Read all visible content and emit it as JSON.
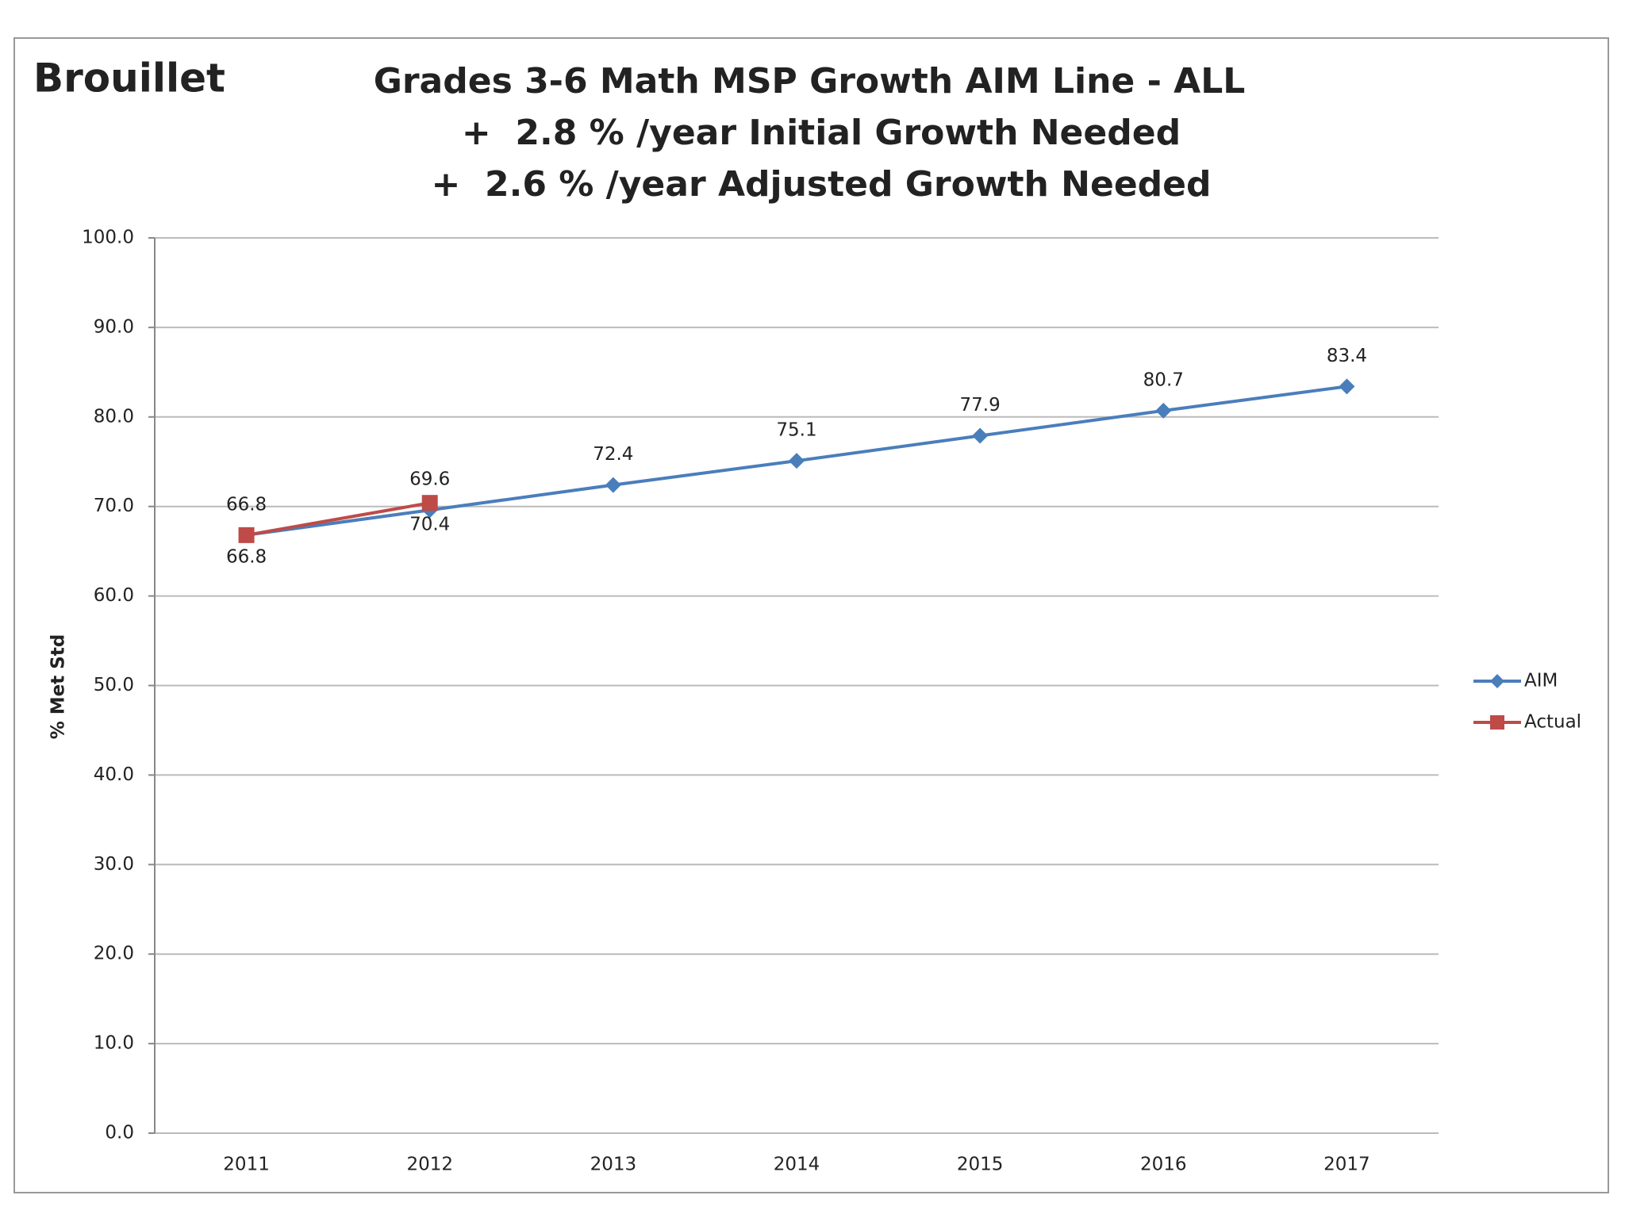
{
  "chart_data": {
    "type": "line",
    "corner_title": "Brouillet",
    "title": "Grades 3-6 Math MSP Growth AIM Line - ALL",
    "subtitle": [
      "+  2.8 % /year Initial Growth Needed",
      "+  2.6 % /year Adjusted Growth Needed"
    ],
    "y_label": "% Met Std",
    "categories": [
      "2011",
      "2012",
      "2013",
      "2014",
      "2015",
      "2016",
      "2017"
    ],
    "series": [
      {
        "name": "AIM",
        "color": "#4a7ebb",
        "marker": "diamond",
        "label_side": "above",
        "values": [
          66.8,
          69.6,
          72.4,
          75.1,
          77.9,
          80.7,
          83.4
        ]
      },
      {
        "name": "Actual",
        "color": "#be4b48",
        "marker": "square",
        "label_side": "below",
        "values": [
          66.8,
          70.4,
          null,
          null,
          null,
          null,
          null
        ]
      }
    ],
    "ylim": [
      0,
      100
    ],
    "yticks": [
      {
        "value": 0,
        "label": "0.0"
      },
      {
        "value": 10,
        "label": "10.0"
      },
      {
        "value": 20,
        "label": "20.0"
      },
      {
        "value": 30,
        "label": "30.0"
      },
      {
        "value": 40,
        "label": "40.0"
      },
      {
        "value": 50,
        "label": "50.0"
      },
      {
        "value": 60,
        "label": "60.0"
      },
      {
        "value": 70,
        "label": "70.0"
      },
      {
        "value": 80,
        "label": "80.0"
      },
      {
        "value": 90,
        "label": "90.0"
      },
      {
        "value": 100,
        "label": "100.0"
      }
    ],
    "grid": true,
    "legend": "right"
  }
}
